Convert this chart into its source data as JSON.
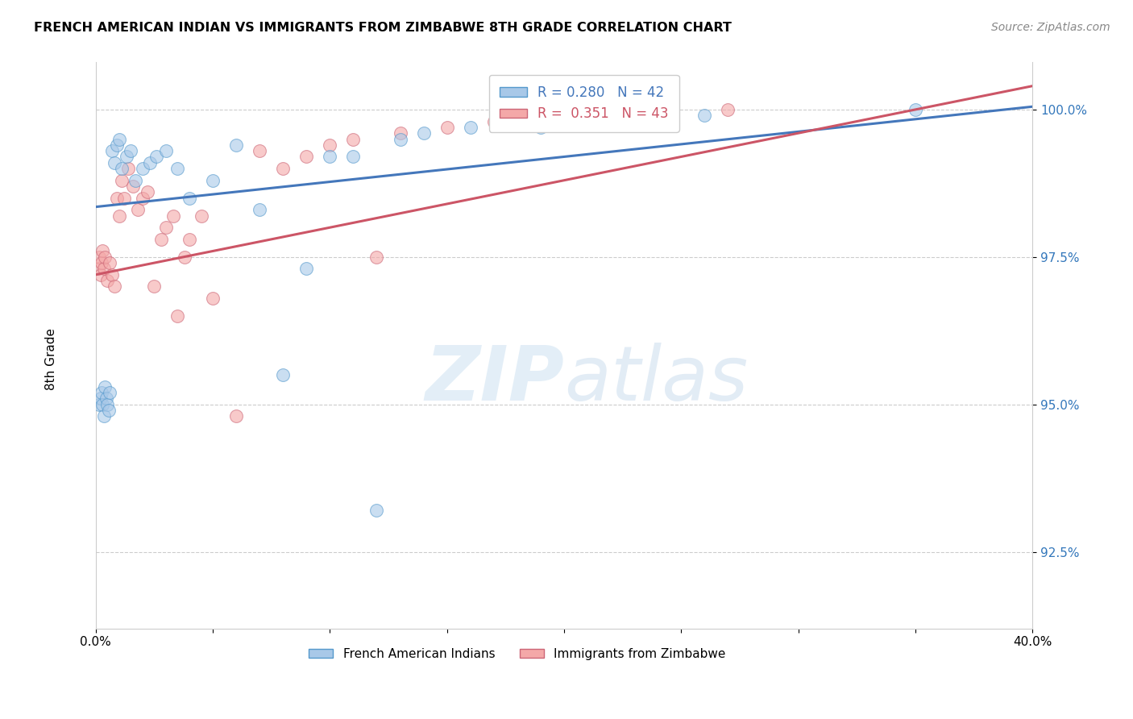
{
  "title": "FRENCH AMERICAN INDIAN VS IMMIGRANTS FROM ZIMBABWE 8TH GRADE CORRELATION CHART",
  "source": "Source: ZipAtlas.com",
  "ylabel": "8th Grade",
  "y_ticks": [
    92.5,
    95.0,
    97.5,
    100.0
  ],
  "y_tick_labels": [
    "92.5%",
    "95.0%",
    "97.5%",
    "100.0%"
  ],
  "xlim": [
    0.0,
    40.0
  ],
  "ylim": [
    91.2,
    100.8
  ],
  "blue_R": 0.28,
  "blue_N": 42,
  "pink_R": 0.351,
  "pink_N": 43,
  "blue_color": "#a8c8e8",
  "pink_color": "#f4a8a8",
  "blue_edge_color": "#5599cc",
  "pink_edge_color": "#cc6677",
  "blue_line_color": "#4477bb",
  "pink_line_color": "#cc5566",
  "legend_blue_label": "French American Indians",
  "legend_pink_label": "Immigrants from Zimbabwe",
  "watermark_zip": "ZIP",
  "watermark_atlas": "atlas",
  "blue_scatter_x": [
    0.15,
    0.2,
    0.25,
    0.3,
    0.35,
    0.4,
    0.45,
    0.5,
    0.55,
    0.6,
    0.7,
    0.8,
    0.9,
    1.0,
    1.1,
    1.3,
    1.5,
    1.7,
    2.0,
    2.3,
    2.6,
    3.0,
    3.5,
    4.0,
    5.0,
    6.0,
    7.0,
    8.0,
    9.0,
    10.0,
    11.0,
    12.0,
    13.0,
    14.0,
    16.0,
    17.5,
    19.0,
    20.5,
    22.0,
    24.5,
    26.0,
    35.0
  ],
  "blue_scatter_y": [
    95.0,
    95.1,
    95.2,
    95.0,
    94.8,
    95.3,
    95.1,
    95.0,
    94.9,
    95.2,
    99.3,
    99.1,
    99.4,
    99.5,
    99.0,
    99.2,
    99.3,
    98.8,
    99.0,
    99.1,
    99.2,
    99.3,
    99.0,
    98.5,
    98.8,
    99.4,
    98.3,
    95.5,
    97.3,
    99.2,
    99.2,
    93.2,
    99.5,
    99.6,
    99.7,
    99.8,
    99.7,
    99.8,
    100.0,
    99.8,
    99.9,
    100.0
  ],
  "pink_scatter_x": [
    0.1,
    0.15,
    0.2,
    0.25,
    0.3,
    0.35,
    0.4,
    0.5,
    0.6,
    0.7,
    0.8,
    0.9,
    1.0,
    1.1,
    1.2,
    1.4,
    1.6,
    1.8,
    2.0,
    2.2,
    2.5,
    2.8,
    3.0,
    3.3,
    3.5,
    3.8,
    4.0,
    4.5,
    5.0,
    6.0,
    7.0,
    8.0,
    9.0,
    10.0,
    11.0,
    12.0,
    13.0,
    15.0,
    17.0,
    19.0,
    21.5,
    24.0,
    27.0
  ],
  "pink_scatter_y": [
    97.3,
    97.5,
    97.2,
    97.4,
    97.6,
    97.3,
    97.5,
    97.1,
    97.4,
    97.2,
    97.0,
    98.5,
    98.2,
    98.8,
    98.5,
    99.0,
    98.7,
    98.3,
    98.5,
    98.6,
    97.0,
    97.8,
    98.0,
    98.2,
    96.5,
    97.5,
    97.8,
    98.2,
    96.8,
    94.8,
    99.3,
    99.0,
    99.2,
    99.4,
    99.5,
    97.5,
    99.6,
    99.7,
    99.8,
    99.9,
    99.85,
    100.0,
    100.0
  ],
  "blue_trendline_x": [
    0.0,
    40.0
  ],
  "blue_trendline_y": [
    98.35,
    100.05
  ],
  "pink_trendline_x": [
    0.0,
    40.0
  ],
  "pink_trendline_y": [
    97.2,
    100.4
  ]
}
